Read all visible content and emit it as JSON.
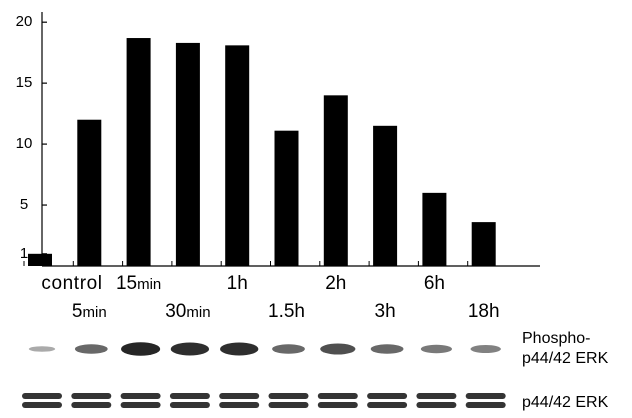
{
  "chart_data": {
    "type": "bar",
    "title": "",
    "xlabel": "",
    "ylabel": "",
    "ylim": [
      0,
      21
    ],
    "yticks": [
      1,
      5,
      10,
      15,
      20
    ],
    "grid": false,
    "categories": [
      {
        "main": "control",
        "sub": ""
      },
      {
        "main": "5",
        "sub": "min"
      },
      {
        "main": "15",
        "sub": "min"
      },
      {
        "main": "30",
        "sub": "min"
      },
      {
        "main": "1h",
        "sub": ""
      },
      {
        "main": "1.5h",
        "sub": ""
      },
      {
        "main": "2h",
        "sub": ""
      },
      {
        "main": "3h",
        "sub": ""
      },
      {
        "main": "6h",
        "sub": ""
      },
      {
        "main": "18h",
        "sub": ""
      }
    ],
    "values": [
      1,
      12,
      18.7,
      18.3,
      18.1,
      11.1,
      14,
      11.5,
      6,
      3.6
    ],
    "bar_color": "#000000"
  },
  "blot": {
    "phospho_label_line1": "Phospho-",
    "phospho_label_line2": "p44/42 ERK",
    "total_label": "p44/42 ERK",
    "phospho_intensity": [
      0.15,
      0.55,
      0.95,
      0.9,
      0.9,
      0.55,
      0.7,
      0.55,
      0.45,
      0.4
    ],
    "total_intensity": [
      0.85,
      0.85,
      0.85,
      0.85,
      0.85,
      0.85,
      0.85,
      0.85,
      0.85,
      0.85
    ],
    "band_color": "#111111"
  }
}
